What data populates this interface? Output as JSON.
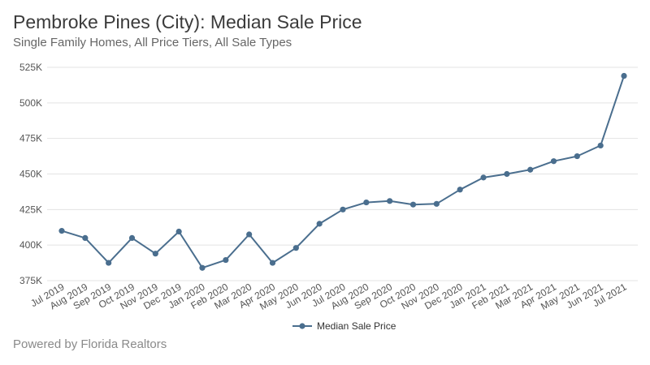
{
  "header": {
    "title": "Pembroke Pines (City): Median Sale Price",
    "subtitle": "Single Family Homes, All Price Tiers, All Sale Types"
  },
  "footer": {
    "text": "Powered by Florida Realtors"
  },
  "colors": {
    "series": "#4a6e8e",
    "grid": "#e3e3e3",
    "axis_text": "#555555"
  },
  "chart_data": {
    "type": "line",
    "title": "Pembroke Pines (City): Median Sale Price",
    "subtitle": "Single Family Homes, All Price Tiers, All Sale Types",
    "xlabel": "",
    "ylabel": "",
    "grid": true,
    "legend_position": "bottom",
    "ylim": [
      375000,
      525000
    ],
    "yticks": [
      375000,
      400000,
      425000,
      450000,
      475000,
      500000,
      525000
    ],
    "ytick_labels": [
      "375K",
      "400K",
      "425K",
      "450K",
      "475K",
      "500K",
      "525K"
    ],
    "categories": [
      "Jul 2019",
      "Aug 2019",
      "Sep 2019",
      "Oct 2019",
      "Nov 2019",
      "Dec 2019",
      "Jan 2020",
      "Feb 2020",
      "Mar 2020",
      "Apr 2020",
      "May 2020",
      "Jun 2020",
      "Jul 2020",
      "Aug 2020",
      "Sep 2020",
      "Oct 2020",
      "Nov 2020",
      "Dec 2020",
      "Jan 2021",
      "Feb 2021",
      "Mar 2021",
      "Apr 2021",
      "May 2021",
      "Jun 2021",
      "Jul 2021"
    ],
    "series": [
      {
        "name": "Median Sale Price",
        "values": [
          410000,
          405000,
          387500,
          405000,
          394000,
          409500,
          384000,
          389500,
          407500,
          387500,
          398000,
          415000,
          425000,
          430000,
          431000,
          428500,
          429000,
          439000,
          447500,
          450000,
          453000,
          459000,
          462500,
          470000,
          519000
        ]
      }
    ]
  }
}
